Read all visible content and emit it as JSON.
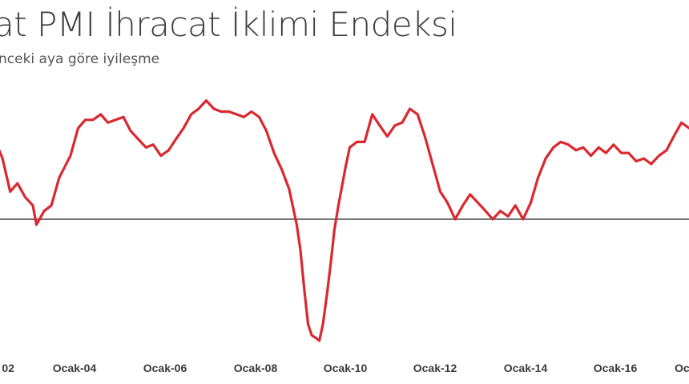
{
  "chart_data": {
    "type": "line",
    "title": "at PMI İhracat İklimi Endeksi",
    "subtitle": "nceki aya göre iyileşme",
    "xlabel": "",
    "ylabel": "",
    "x_ticks": [
      "02",
      "Ocak-04",
      "Ocak-06",
      "Ocak-08",
      "Ocak-10",
      "Ocak-12",
      "Ocak-14",
      "Ocak-16",
      "Oc"
    ],
    "reference_line": 50,
    "ylim": [
      45.4,
      55.1
    ],
    "grid": false,
    "line_color": "#d9282f",
    "series": [
      {
        "name": "",
        "points": [
          [
            2002.0,
            53.2
          ],
          [
            2002.25,
            52.2
          ],
          [
            2002.42,
            51.0
          ],
          [
            2002.58,
            51.3
          ],
          [
            2002.75,
            50.8
          ],
          [
            2002.92,
            50.5
          ],
          [
            2003.0,
            49.8
          ],
          [
            2003.17,
            50.3
          ],
          [
            2003.33,
            50.5
          ],
          [
            2003.5,
            51.5
          ],
          [
            2003.75,
            52.3
          ],
          [
            2003.92,
            53.3
          ],
          [
            2004.08,
            53.6
          ],
          [
            2004.25,
            53.6
          ],
          [
            2004.42,
            53.8
          ],
          [
            2004.58,
            53.5
          ],
          [
            2004.75,
            53.6
          ],
          [
            2004.92,
            53.7
          ],
          [
            2005.08,
            53.2
          ],
          [
            2005.25,
            52.9
          ],
          [
            2005.42,
            52.6
          ],
          [
            2005.58,
            52.7
          ],
          [
            2005.75,
            52.3
          ],
          [
            2005.92,
            52.5
          ],
          [
            2006.08,
            52.9
          ],
          [
            2006.25,
            53.3
          ],
          [
            2006.42,
            53.8
          ],
          [
            2006.58,
            54.0
          ],
          [
            2006.75,
            54.3
          ],
          [
            2006.92,
            54.0
          ],
          [
            2007.08,
            53.9
          ],
          [
            2007.25,
            53.9
          ],
          [
            2007.42,
            53.8
          ],
          [
            2007.58,
            53.7
          ],
          [
            2007.75,
            53.9
          ],
          [
            2007.92,
            53.7
          ],
          [
            2008.08,
            53.2
          ],
          [
            2008.25,
            52.4
          ],
          [
            2008.42,
            51.8
          ],
          [
            2008.58,
            51.1
          ],
          [
            2008.75,
            49.8
          ],
          [
            2008.83,
            48.9
          ],
          [
            2008.92,
            47.4
          ],
          [
            2009.0,
            46.2
          ],
          [
            2009.08,
            45.8
          ],
          [
            2009.17,
            45.7
          ],
          [
            2009.25,
            45.6
          ],
          [
            2009.33,
            46.2
          ],
          [
            2009.42,
            47.3
          ],
          [
            2009.5,
            48.4
          ],
          [
            2009.58,
            49.6
          ],
          [
            2009.67,
            50.5
          ],
          [
            2009.83,
            51.9
          ],
          [
            2009.92,
            52.6
          ],
          [
            2010.08,
            52.8
          ],
          [
            2010.25,
            52.8
          ],
          [
            2010.42,
            53.8
          ],
          [
            2010.58,
            53.4
          ],
          [
            2010.75,
            53.0
          ],
          [
            2010.92,
            53.4
          ],
          [
            2011.08,
            53.5
          ],
          [
            2011.25,
            54.0
          ],
          [
            2011.42,
            53.8
          ],
          [
            2011.58,
            53.0
          ],
          [
            2011.75,
            52.0
          ],
          [
            2011.92,
            51.0
          ],
          [
            2012.08,
            50.6
          ],
          [
            2012.25,
            50.0
          ],
          [
            2012.42,
            50.5
          ],
          [
            2012.58,
            50.9
          ],
          [
            2012.75,
            50.6
          ],
          [
            2012.92,
            50.3
          ],
          [
            2013.08,
            50.0
          ],
          [
            2013.25,
            50.3
          ],
          [
            2013.42,
            50.1
          ],
          [
            2013.58,
            50.5
          ],
          [
            2013.75,
            50.0
          ],
          [
            2013.92,
            50.6
          ],
          [
            2014.08,
            51.5
          ],
          [
            2014.25,
            52.2
          ],
          [
            2014.42,
            52.6
          ],
          [
            2014.58,
            52.8
          ],
          [
            2014.75,
            52.7
          ],
          [
            2014.92,
            52.5
          ],
          [
            2015.08,
            52.6
          ],
          [
            2015.25,
            52.3
          ],
          [
            2015.42,
            52.6
          ],
          [
            2015.58,
            52.4
          ],
          [
            2015.75,
            52.7
          ],
          [
            2015.92,
            52.4
          ],
          [
            2016.08,
            52.4
          ],
          [
            2016.25,
            52.1
          ],
          [
            2016.42,
            52.2
          ],
          [
            2016.58,
            52.0
          ],
          [
            2016.75,
            52.3
          ],
          [
            2016.92,
            52.5
          ],
          [
            2017.08,
            53.0
          ],
          [
            2017.25,
            53.5
          ],
          [
            2017.42,
            53.3
          ],
          [
            2017.58,
            53.2
          ],
          [
            2017.75,
            53.3
          ],
          [
            2017.92,
            53.4
          ],
          [
            2018.08,
            53.7
          ],
          [
            2018.25,
            53.8
          ]
        ]
      }
    ]
  }
}
